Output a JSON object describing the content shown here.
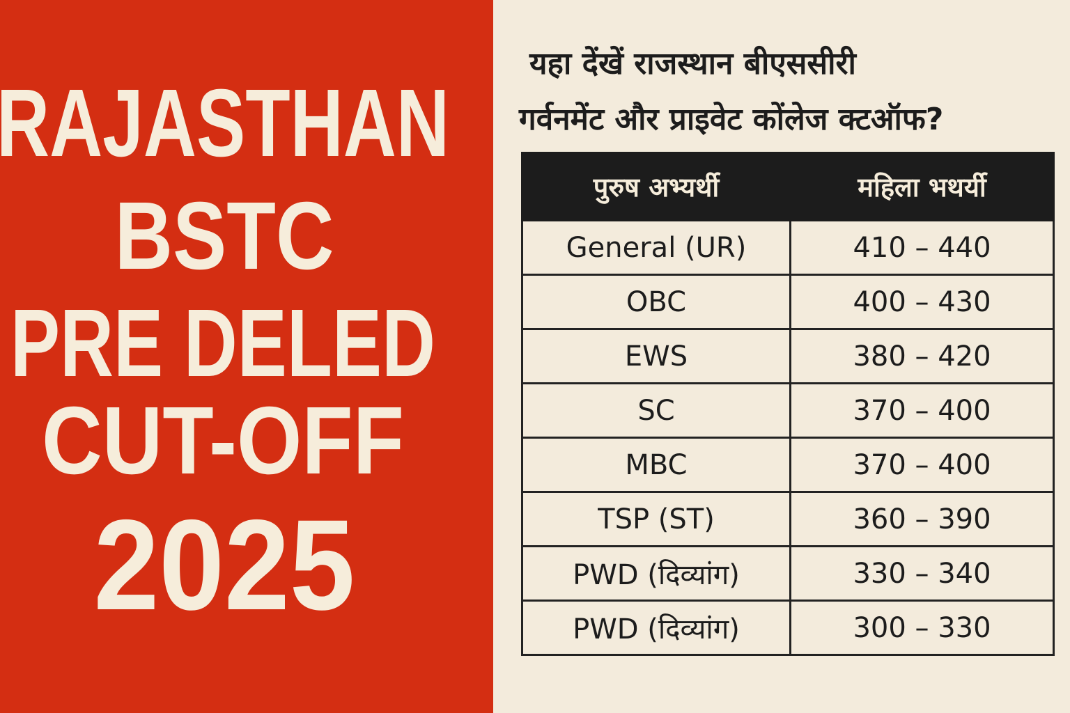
{
  "title": {
    "lines": [
      "RAJASTHAN",
      "BSTC",
      "PRE DELED",
      "CUT-OFF",
      "2025"
    ]
  },
  "heading": {
    "lines": [
      "यहा देंखें राजस्थान बीएससीरी",
      "गर्वनमेंट और प्राइवेट कोंलेज क्टऑफ?"
    ]
  },
  "table": {
    "header": [
      "पुरुष अभ्यर्थी",
      "महिला भथर्यी"
    ],
    "rows": [
      [
        "General (UR)",
        "410 – 440"
      ],
      [
        "OBC",
        "400 – 430"
      ],
      [
        "EWS",
        "380 – 420"
      ],
      [
        "SC",
        "370 – 400"
      ],
      [
        "MBC",
        "370 – 400"
      ],
      [
        "TSP (ST)",
        "360 – 390"
      ],
      [
        "PWD (दिव्यांग)",
        "330 – 340"
      ],
      [
        "PWD (दिव्यांग)",
        "300 – 330"
      ]
    ]
  }
}
